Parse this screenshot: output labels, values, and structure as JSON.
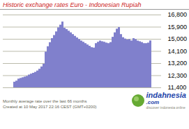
{
  "chart_data": {
    "type": "bar",
    "title": "Historic exchange rates Euro - Indonesian Rupiah",
    "categories": [
      null,
      null,
      null,
      null,
      null,
      null,
      null,
      null,
      null,
      null,
      null,
      null,
      null,
      null,
      null,
      null,
      null,
      null,
      null,
      null,
      null,
      null,
      null,
      null,
      null,
      null,
      null,
      null,
      null,
      null,
      null,
      null,
      null,
      null,
      null,
      null,
      null,
      null,
      null,
      null,
      null,
      null,
      null,
      null,
      null,
      null,
      null,
      null,
      null,
      null,
      null,
      null,
      null,
      null,
      null,
      null,
      null,
      null,
      null,
      null,
      null,
      null,
      null,
      null,
      null,
      null
    ],
    "values": [
      11820,
      11900,
      12050,
      12100,
      12150,
      12200,
      12250,
      12350,
      12420,
      12480,
      12550,
      12650,
      12780,
      12950,
      13150,
      14050,
      14450,
      14750,
      15050,
      15280,
      15550,
      15850,
      16050,
      16280,
      15820,
      15720,
      15600,
      15480,
      15350,
      15220,
      15100,
      14980,
      14870,
      14780,
      14680,
      14580,
      14480,
      14380,
      14350,
      14680,
      14780,
      14870,
      14820,
      14780,
      14720,
      14680,
      14760,
      15150,
      15480,
      15750,
      15870,
      15350,
      15120,
      15020,
      14950,
      14980,
      14880,
      15050,
      14980,
      14870,
      14820,
      14760,
      14680,
      14680,
      14720,
      14880
    ],
    "color": "#8080cc",
    "ylim": [
      11400,
      16800
    ],
    "yticks": [
      {
        "value": 11400,
        "label": "11,400"
      },
      {
        "value": 12300,
        "label": "12,300"
      },
      {
        "value": 13200,
        "label": "13,200"
      },
      {
        "value": 14100,
        "label": "14,100"
      },
      {
        "value": 15000,
        "label": "15,000"
      },
      {
        "value": 15900,
        "label": "15,900"
      },
      {
        "value": 16800,
        "label": "16,800"
      }
    ],
    "grid": true,
    "tick_labels": "y",
    "annotations": [
      "Monthly average rate over the last 66 months\nCreated at 10 May 2017 22:16 CEST (GMT+0200)",
      "indahnesia",
      ".com",
      "discover indonesia online"
    ]
  }
}
